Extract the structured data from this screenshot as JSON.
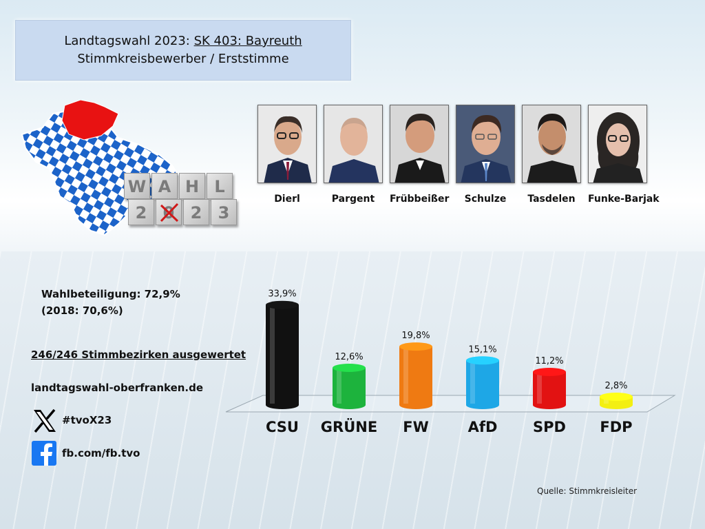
{
  "header": {
    "line1_prefix": "Landtagswahl 2023: ",
    "line1_link": "SK 403: Bayreuth",
    "line2": "Stimmkreisbewerber / Erststimme"
  },
  "logo": {
    "letters_top": [
      "W",
      "A",
      "H",
      "L"
    ],
    "digits_bottom": [
      "2",
      "0",
      "2",
      "3"
    ]
  },
  "candidates": [
    {
      "name": "Dierl"
    },
    {
      "name": "Pargent"
    },
    {
      "name": "Frübbeißer"
    },
    {
      "name": "Schulze"
    },
    {
      "name": "Tasdelen"
    },
    {
      "name": "Funke-Barjak"
    }
  ],
  "info": {
    "turnout": "Wahlbeteiligung: 72,9%",
    "turnout_prev": "(2018: 70,6%)",
    "districts": "246/246 Stimmbezirken ausgewertet",
    "website": "landtagswahl-oberfranken.de",
    "x_handle": "#tvoX23",
    "fb_handle": "fb.com/fb.tvo"
  },
  "chart_data": {
    "type": "bar",
    "title": "",
    "categories": [
      "CSU",
      "GRÜNE",
      "FW",
      "AfD",
      "SPD",
      "FDP"
    ],
    "values": [
      33.9,
      12.6,
      19.8,
      15.1,
      11.2,
      2.8
    ],
    "value_labels": [
      "33,9%",
      "12,6%",
      "19,8%",
      "15,1%",
      "11,2%",
      "2,8%"
    ],
    "colors": [
      "#111111",
      "#1db33d",
      "#ef7a12",
      "#1ea7e6",
      "#e21212",
      "#f3ef12"
    ],
    "ylim": [
      0,
      35
    ],
    "xlabel": "",
    "ylabel": "",
    "grid": false
  },
  "source": "Quelle: Stimmkreisleiter",
  "colors": {
    "title_bg": "#c9daf0",
    "bavaria_blue": "#1c63c9",
    "oberfranken_red": "#e81212"
  }
}
